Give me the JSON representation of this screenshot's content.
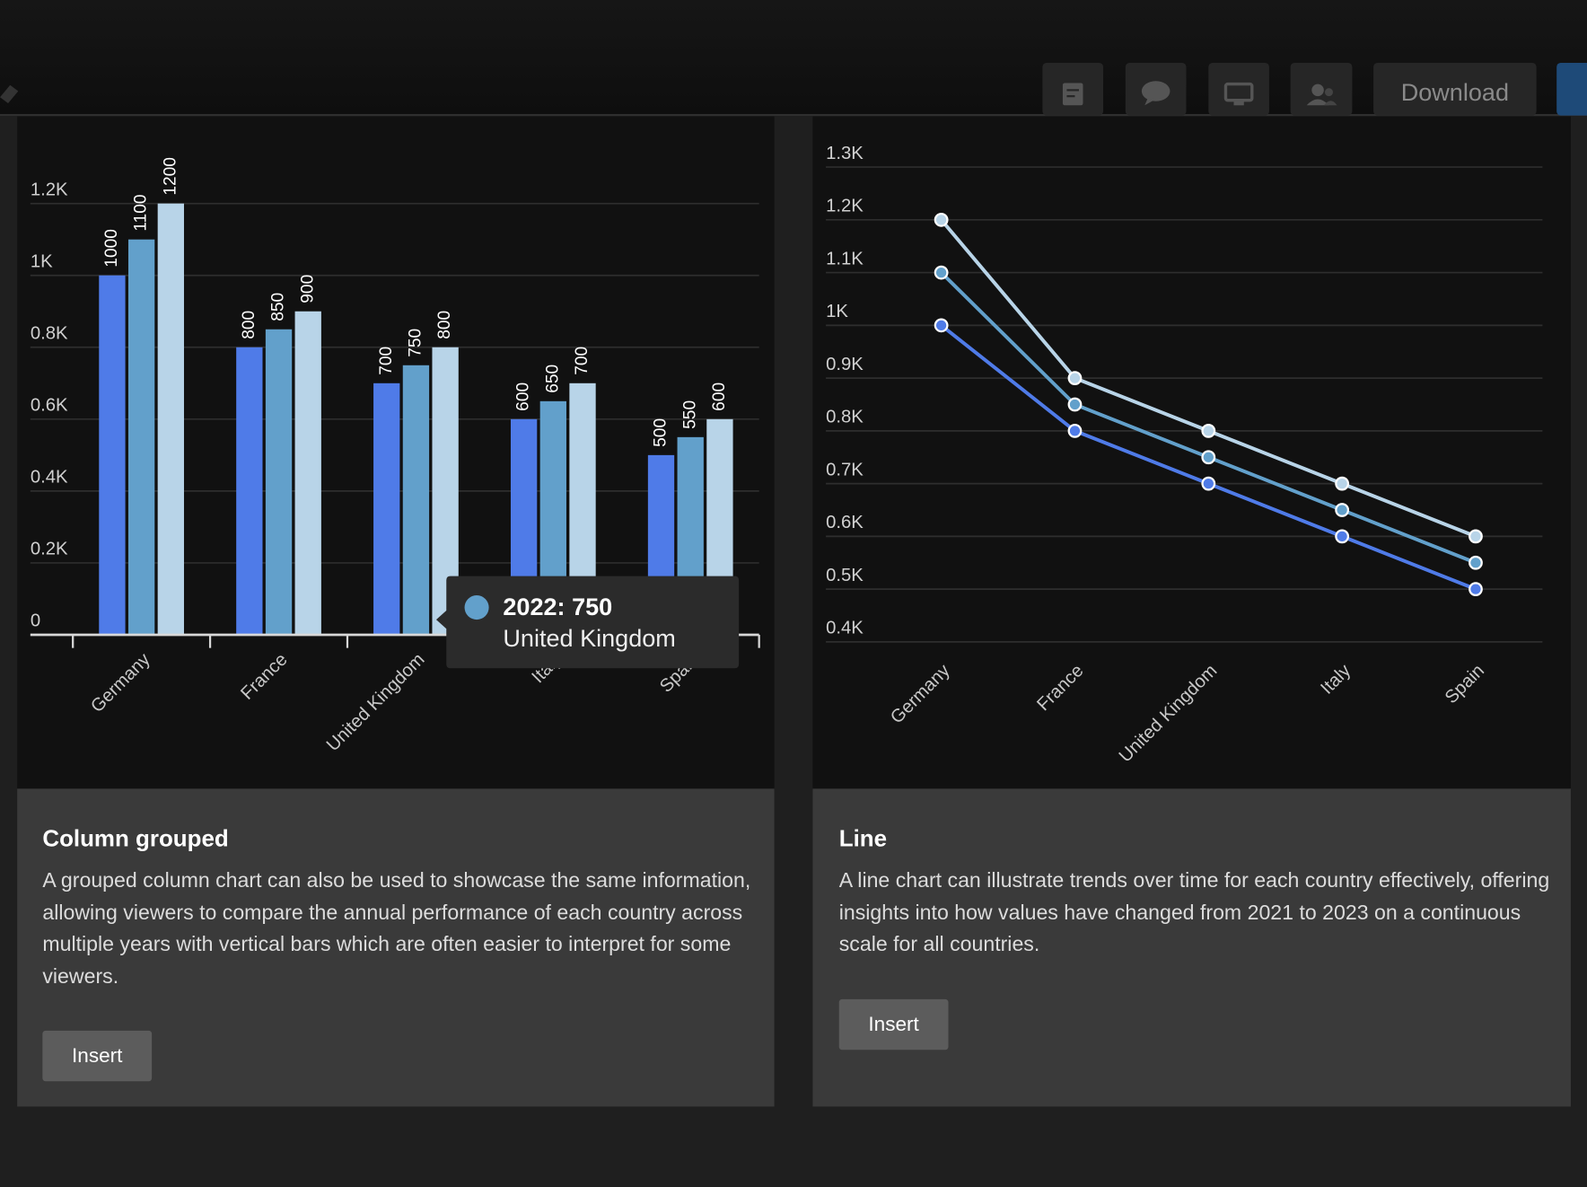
{
  "toolbar": {
    "download": "Download"
  },
  "chart_data": [
    {
      "type": "bar",
      "categories": [
        "Germany",
        "France",
        "United Kingdom",
        "Italy",
        "Spain"
      ],
      "series": [
        {
          "color": "#4f7be8",
          "values": [
            1000,
            800,
            700,
            600,
            500
          ]
        },
        {
          "color": "#62a0cb",
          "values": [
            1100,
            850,
            750,
            650,
            550
          ]
        },
        {
          "color": "#b8d4e8",
          "values": [
            1200,
            900,
            800,
            700,
            600
          ]
        }
      ],
      "ylim": [
        0,
        1200
      ],
      "yticks": [
        0,
        {
          "value": 200,
          "label": "0.2K"
        },
        {
          "value": 400,
          "label": "0.4K"
        },
        {
          "value": 600,
          "label": "0.6K"
        },
        {
          "value": 800,
          "label": "0.8K"
        },
        {
          "value": 1000,
          "label": "1K"
        },
        {
          "value": 1200,
          "label": "1.2K"
        }
      ],
      "grid": true,
      "data_labels": true
    },
    {
      "type": "line",
      "categories": [
        "Germany",
        "France",
        "United Kingdom",
        "Italy",
        "Spain"
      ],
      "series": [
        {
          "color": "#4f7be8",
          "values": [
            1000,
            800,
            700,
            600,
            500
          ]
        },
        {
          "color": "#62a0cb",
          "values": [
            1100,
            850,
            750,
            650,
            550
          ]
        },
        {
          "color": "#b8d4e8",
          "values": [
            1200,
            900,
            800,
            700,
            600
          ]
        }
      ],
      "ylim": [
        400,
        1300
      ],
      "yticks": [
        {
          "value": 400,
          "label": "0.4K"
        },
        {
          "value": 500,
          "label": "0.5K"
        },
        {
          "value": 600,
          "label": "0.6K"
        },
        {
          "value": 700,
          "label": "0.7K"
        },
        {
          "value": 800,
          "label": "0.8K"
        },
        {
          "value": 900,
          "label": "0.9K"
        },
        {
          "value": 1000,
          "label": "1K"
        },
        {
          "value": 1100,
          "label": "1.1K"
        },
        {
          "value": 1200,
          "label": "1.2K"
        },
        {
          "value": 1300,
          "label": "1.3K"
        }
      ],
      "grid": true
    }
  ],
  "tooltip": {
    "text": "2022: 750",
    "category": "United Kingdom",
    "color": "#62a0cb"
  },
  "cards": [
    {
      "title": "Column grouped",
      "description": "A grouped column chart can also be used to showcase the same information, allowing viewers to compare the annual performance of each country across multiple years with vertical bars which are often easier to interpret for some viewers.",
      "button": "Insert"
    },
    {
      "title": "Line",
      "description": "A line chart can illustrate trends over time for each country effectively, offering insights into how values have changed from 2021 to 2023 on a continuous scale for all countries.",
      "button": "Insert"
    }
  ]
}
